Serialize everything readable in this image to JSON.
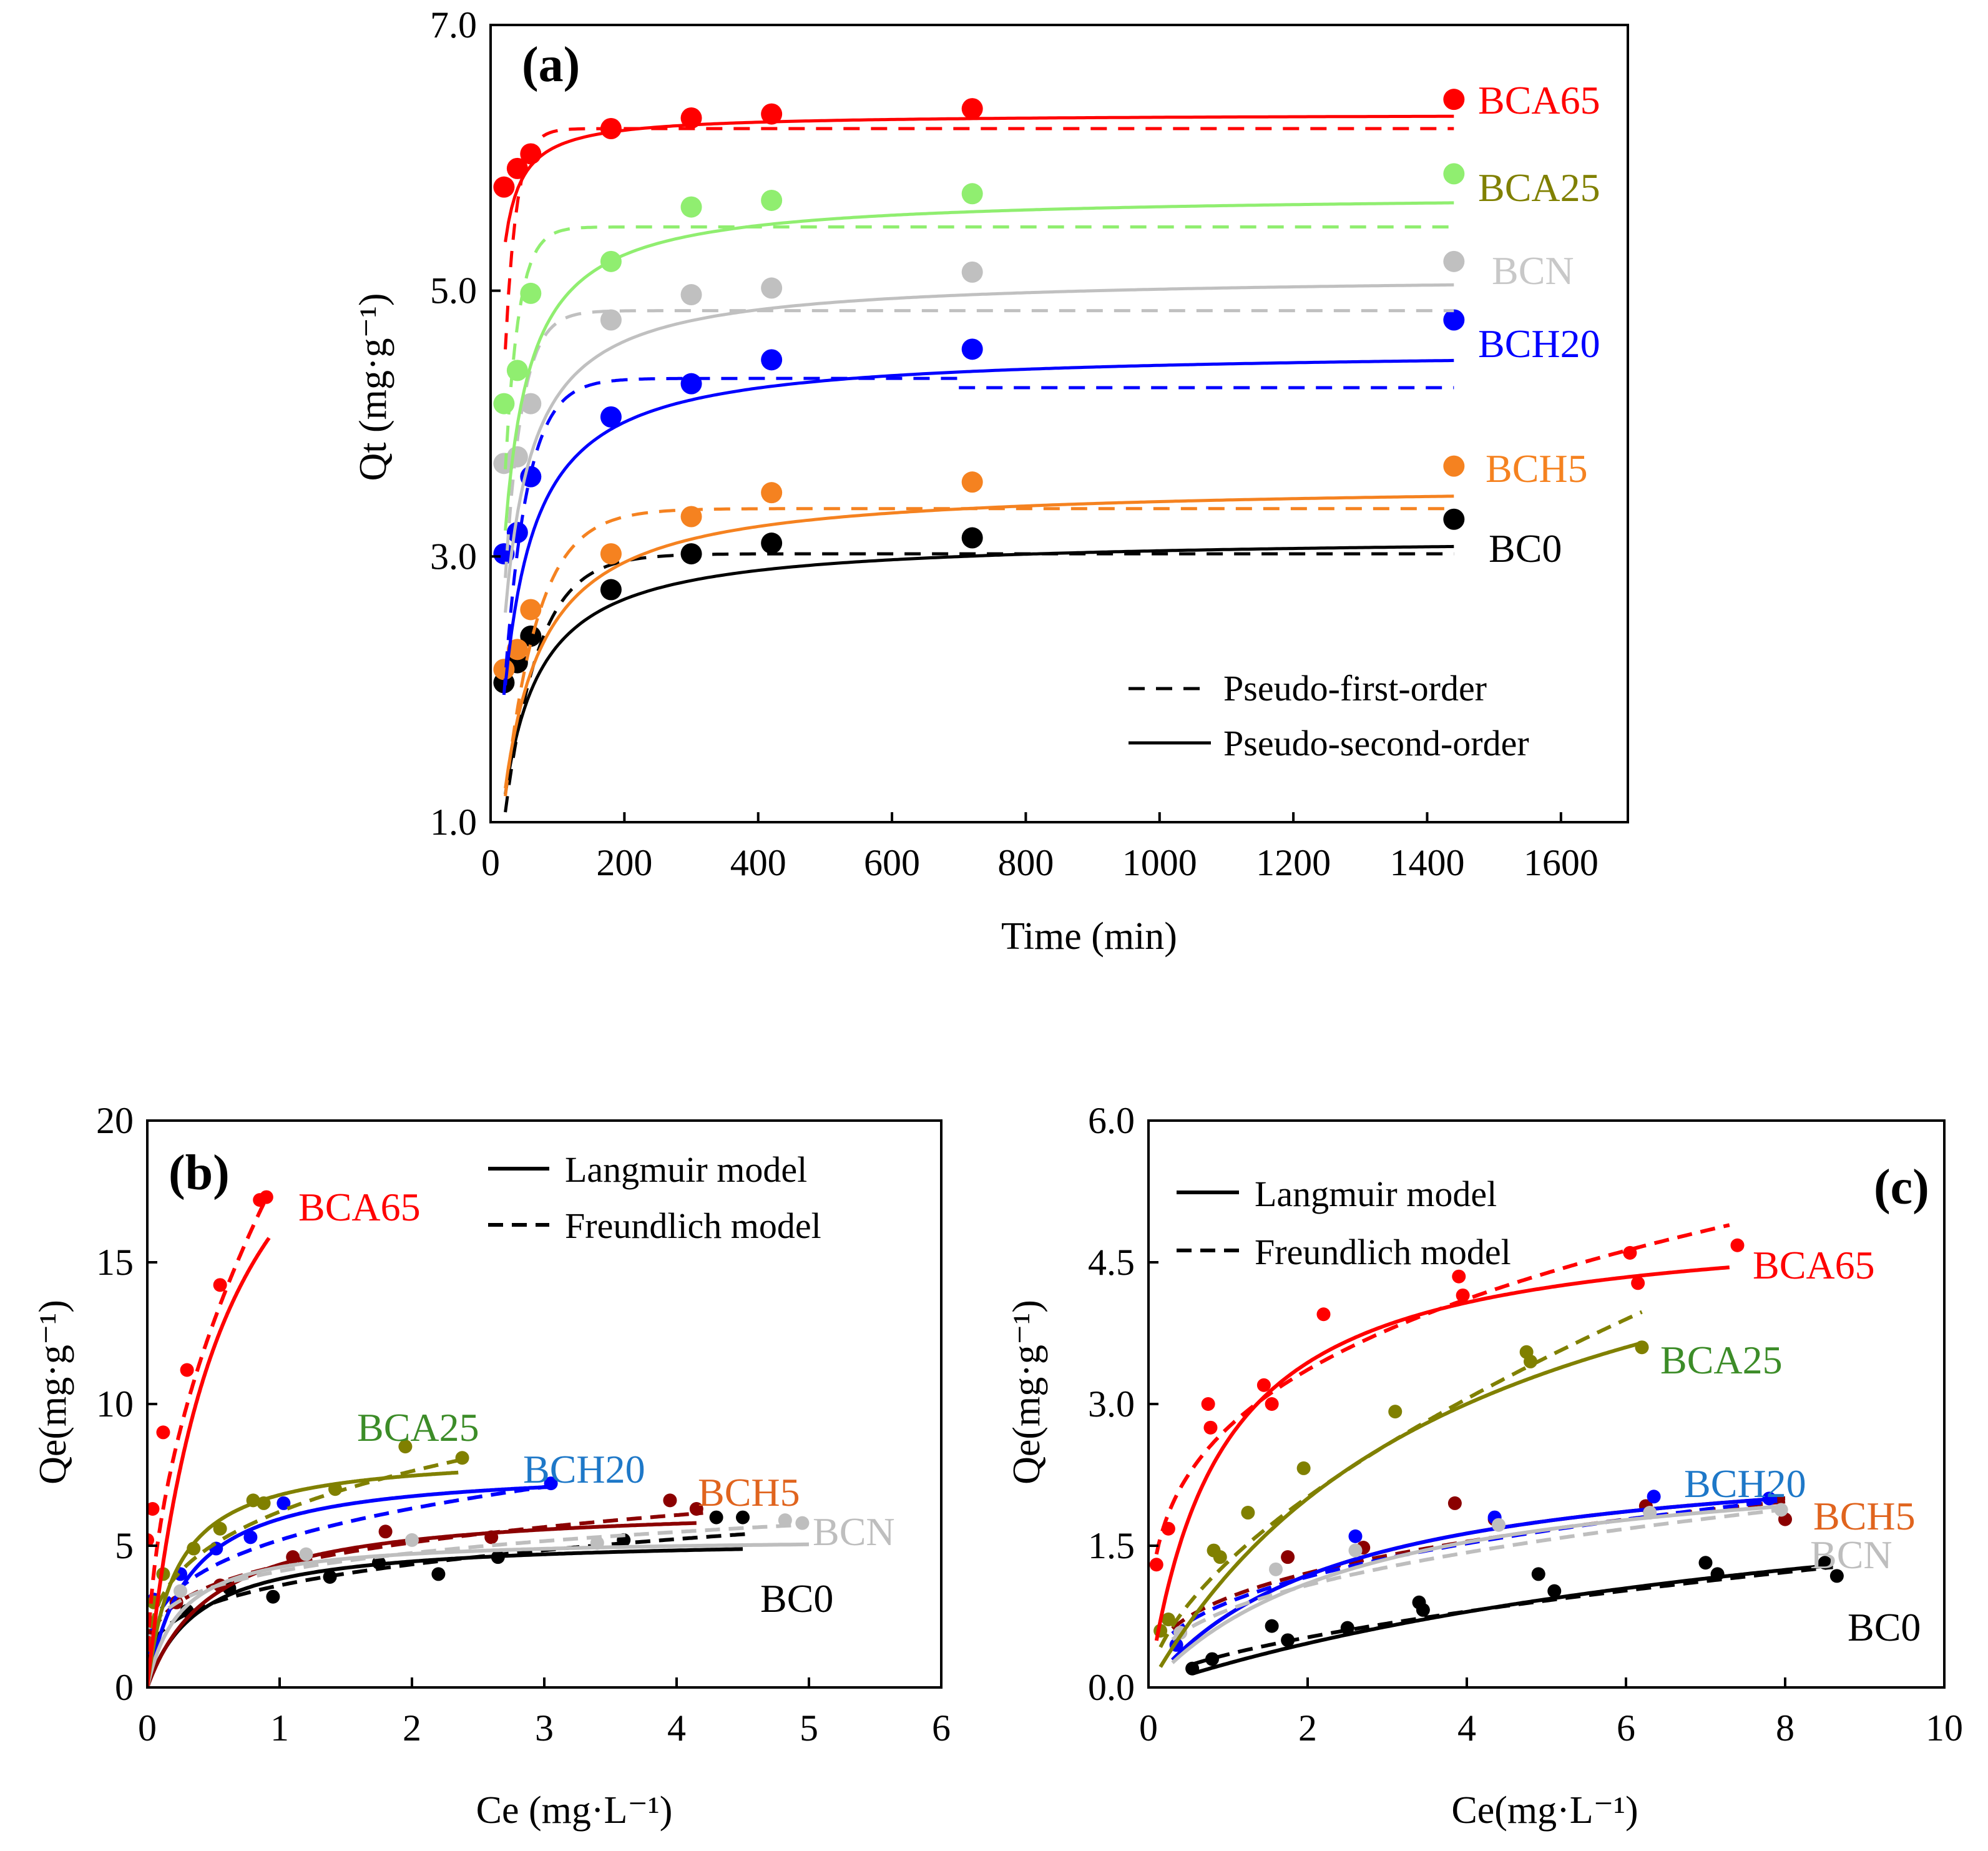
{
  "figure": {
    "colors": {
      "BC0": "#000000",
      "BCH5": "#F58220",
      "BCH20": "#0000FF",
      "BCN": "#C0C0C0",
      "BCA25": "#90EE70",
      "BCA65": "#FF0000",
      "BCA25_iso": "#808000",
      "BCH5_iso": "#8B0000",
      "BCH20_iso": "#0000FF",
      "BCN_iso": "#BEBEBE"
    }
  },
  "chart_data": [
    {
      "id": "a",
      "panel_label": "(a)",
      "type": "scatter",
      "xlabel": "Time (min)",
      "ylabel": "Qt (mg·g⁻¹)",
      "xlim": [
        0,
        1700
      ],
      "ylim": [
        1.0,
        7.0
      ],
      "xticks": [
        0,
        200,
        400,
        600,
        800,
        1000,
        1200,
        1400,
        1600
      ],
      "yticks": [
        "1.0",
        "3.0",
        "5.0",
        "7.0"
      ],
      "ytick_values": [
        1.0,
        3.0,
        5.0,
        7.0
      ],
      "legend": {
        "placement": "bottom-right",
        "entries": [
          {
            "style": "dashed",
            "label": "Pseudo-first-order"
          },
          {
            "style": "solid",
            "label": "Pseudo-second-order"
          }
        ]
      },
      "series": [
        {
          "name": "BC0",
          "color_key": "BC0",
          "x": [
            20,
            40,
            60,
            180,
            300,
            420,
            720,
            1440
          ],
          "y": [
            2.05,
            2.2,
            2.4,
            2.75,
            3.02,
            3.1,
            3.14,
            3.28
          ],
          "pfo": {
            "qe": 3.02,
            "k": 0.02
          },
          "pso": {
            "qe": 3.15,
            "k": 0.009
          }
        },
        {
          "name": "BCH5",
          "color_key": "BCH5",
          "x": [
            20,
            40,
            60,
            180,
            300,
            420,
            720,
            1440
          ],
          "y": [
            2.15,
            2.3,
            2.6,
            3.02,
            3.3,
            3.48,
            3.56,
            3.68
          ],
          "pfo": {
            "qe": 3.36,
            "k": 0.02
          },
          "pso": {
            "qe": 3.55,
            "k": 0.007
          }
        },
        {
          "name": "BCH20",
          "color_key": "BCH20",
          "x": [
            20,
            40,
            60,
            180,
            300,
            420,
            720,
            1440
          ],
          "y": [
            3.02,
            3.18,
            3.6,
            4.05,
            4.3,
            4.48,
            4.56,
            4.78
          ],
          "pfo_segments": [
            {
              "qe": 4.34,
              "k": 0.03,
              "x": [
                20,
                700
              ]
            },
            {
              "qe": 4.27,
              "k": 0.03,
              "x": [
                700,
                1440
              ]
            }
          ],
          "pso": {
            "qe": 4.56,
            "k": 0.008
          }
        },
        {
          "name": "BCN",
          "color_key": "BCN",
          "x": [
            20,
            40,
            60,
            180,
            300,
            420,
            720,
            1440
          ],
          "y": [
            3.7,
            3.75,
            4.15,
            4.78,
            4.97,
            5.02,
            5.14,
            5.22
          ],
          "pfo": {
            "qe": 4.85,
            "k": 0.04
          },
          "pso": {
            "qe": 5.12,
            "k": 0.009
          }
        },
        {
          "name": "BCA25",
          "color_key": "BCA25",
          "x": [
            20,
            40,
            60,
            180,
            300,
            420,
            720,
            1440
          ],
          "y": [
            4.15,
            4.4,
            4.98,
            5.22,
            5.63,
            5.68,
            5.73,
            5.88
          ],
          "pfo": {
            "qe": 5.48,
            "k": 0.05
          },
          "pso": {
            "qe": 5.73,
            "k": 0.01
          }
        },
        {
          "name": "BCA65",
          "color_key": "BCA65",
          "x": [
            20,
            40,
            60,
            180,
            300,
            420,
            720,
            1440
          ],
          "y": [
            5.78,
            5.92,
            6.03,
            6.22,
            6.3,
            6.33,
            6.37,
            6.44
          ],
          "pfo": {
            "qe": 6.22,
            "k": 0.06
          },
          "pso": {
            "qe": 6.33,
            "k": 0.04
          }
        }
      ]
    },
    {
      "id": "b",
      "panel_label": "(b)",
      "type": "scatter",
      "xlabel": "Ce (mg·L⁻¹)",
      "ylabel": "Qe(mg·g⁻¹)",
      "xlim": [
        0,
        6
      ],
      "ylim": [
        0,
        20
      ],
      "xticks": [
        0,
        1,
        2,
        3,
        4,
        5,
        6
      ],
      "yticks": [
        0,
        5,
        10,
        15,
        20
      ],
      "legend": {
        "placement": "top-right",
        "entries": [
          {
            "style": "solid",
            "label": "Langmuir model"
          },
          {
            "style": "dashed",
            "label": "Freundlich model"
          }
        ]
      },
      "series": [
        {
          "name": "BC0",
          "color_key": "BC0",
          "x": [
            0.02,
            0.3,
            0.62,
            0.95,
            1.38,
            1.75,
            2.2,
            2.65,
            3.6,
            4.3,
            4.5
          ],
          "y": [
            1.9,
            2.7,
            3.5,
            3.2,
            3.9,
            4.4,
            4.0,
            4.6,
            5.2,
            6.0,
            6.0
          ],
          "lang": {
            "qm": 5.3,
            "k": 2.6,
            "xmax": 4.5
          },
          "freu": {
            "kf": 3.6,
            "n": 0.27,
            "xmax": 4.55
          }
        },
        {
          "name": "BCH5",
          "color_key": "BCH5_iso",
          "x": [
            0.02,
            0.22,
            0.55,
            1.1,
            1.8,
            2.6,
            3.95,
            4.15
          ],
          "y": [
            2.1,
            3.0,
            3.6,
            4.6,
            5.5,
            5.3,
            6.6,
            6.3
          ],
          "lang": {
            "qm": 6.5,
            "k": 2.0,
            "xmax": 4.15
          },
          "freu": {
            "kf": 4.3,
            "n": 0.25,
            "xmax": 4.2
          }
        },
        {
          "name": "BCH20",
          "color_key": "BCH20_iso",
          "x": [
            0.05,
            0.25,
            0.52,
            0.78,
            1.03,
            3.05
          ],
          "y": [
            3.1,
            4.0,
            4.9,
            5.3,
            6.5,
            7.2
          ],
          "lang": {
            "qm": 7.8,
            "k": 3.2,
            "xmax": 3.05
          },
          "freu": {
            "kf": 5.2,
            "n": 0.28,
            "xmax": 3.05
          }
        },
        {
          "name": "BCN",
          "color_key": "BCN_iso",
          "x": [
            0.01,
            0.25,
            1.2,
            2.0,
            3.4,
            4.82,
            4.95
          ],
          "y": [
            2.3,
            3.4,
            4.7,
            5.2,
            5.1,
            5.9,
            5.8
          ],
          "lang": {
            "qm": 5.3,
            "k": 4.0,
            "xmax": 5.0
          },
          "freu": {
            "kf": 4.1,
            "n": 0.21,
            "xmax": 4.95
          }
        },
        {
          "name": "BCA25",
          "color_key": "BCA25_iso",
          "x": [
            0.05,
            0.12,
            0.35,
            0.55,
            0.8,
            0.88,
            1.42,
            1.95,
            2.38
          ],
          "y": [
            3.0,
            4.0,
            4.9,
            5.6,
            6.6,
            6.5,
            7.0,
            8.5,
            8.1
          ],
          "lang": {
            "qm": 8.3,
            "k": 4.5,
            "xmax": 2.35
          },
          "freu": {
            "kf": 6.2,
            "n": 0.3,
            "xmax": 2.4
          }
        },
        {
          "name": "BCA65",
          "color_key": "BCA65",
          "x": [
            0.0,
            0.04,
            0.12,
            0.3,
            0.55,
            0.85,
            0.9
          ],
          "y": [
            5.2,
            6.3,
            9.0,
            11.2,
            14.2,
            17.2,
            17.3
          ],
          "lang": {
            "qm": 26.0,
            "k": 1.7,
            "xmax": 0.92
          },
          "freu": {
            "kf": 18.2,
            "n": 0.5,
            "xmax": 0.92
          }
        }
      ]
    },
    {
      "id": "c",
      "panel_label": "(c)",
      "type": "scatter",
      "xlabel": "Ce(mg·L⁻¹)",
      "ylabel": "Qe(mg·g⁻¹)",
      "xlim": [
        0,
        10
      ],
      "ylim": [
        0.0,
        6.0
      ],
      "xticks": [
        0,
        2,
        4,
        6,
        8,
        10
      ],
      "yticks": [
        "0.0",
        "1.5",
        "3.0",
        "4.5",
        "6.0"
      ],
      "ytick_values": [
        0.0,
        1.5,
        3.0,
        4.5,
        6.0
      ],
      "legend": {
        "placement": "top-left",
        "entries": [
          {
            "style": "solid",
            "label": "Langmuir model"
          },
          {
            "style": "dashed",
            "label": "Freundlich model"
          }
        ]
      },
      "series": [
        {
          "name": "BC0",
          "color_key": "BC0",
          "x": [
            0.55,
            0.8,
            1.55,
            1.75,
            2.5,
            3.4,
            3.45,
            4.9,
            5.1,
            7.0,
            7.15,
            8.5,
            8.65
          ],
          "y": [
            0.2,
            0.3,
            0.65,
            0.5,
            0.63,
            0.9,
            0.82,
            1.2,
            1.02,
            1.32,
            1.2,
            1.32,
            1.18
          ],
          "lang": {
            "qm": 2.8,
            "k": 0.1,
            "xmin": 0.55,
            "xmax": 8.6
          },
          "freu": {
            "kf": 0.35,
            "n": 0.6,
            "xmin": 0.55,
            "xmax": 8.6
          }
        },
        {
          "name": "BCH5",
          "color_key": "BCH5_iso",
          "x": [
            0.4,
            1.75,
            2.7,
            3.85,
            4.35,
            6.25,
            8.0
          ],
          "y": [
            0.58,
            1.38,
            1.48,
            1.95,
            1.78,
            1.92,
            1.78
          ],
          "lang": {
            "qm": 2.6,
            "k": 0.42,
            "xmin": 0.3,
            "xmax": 8.0
          },
          "freu": {
            "kf": 0.95,
            "n": 0.35,
            "xmin": 0.3,
            "xmax": 8.0
          }
        },
        {
          "name": "BCH20",
          "color_key": "BCH20_iso",
          "x": [
            0.35,
            2.6,
            4.35,
            6.35,
            7.8
          ],
          "y": [
            0.45,
            1.6,
            1.8,
            2.02,
            2.0
          ],
          "lang": {
            "qm": 2.6,
            "k": 0.42,
            "xmin": 0.3,
            "xmax": 7.9
          },
          "freu": {
            "kf": 0.9,
            "n": 0.38,
            "xmin": 0.3,
            "xmax": 7.9
          }
        },
        {
          "name": "BCN",
          "color_key": "BCN_iso",
          "x": [
            0.4,
            1.6,
            2.6,
            4.4,
            6.3,
            7.95
          ],
          "y": [
            0.58,
            1.25,
            1.45,
            1.72,
            1.85,
            1.88
          ],
          "lang": {
            "qm": 2.55,
            "k": 0.38,
            "xmin": 0.3,
            "xmax": 8.0
          },
          "freu": {
            "kf": 0.82,
            "n": 0.4,
            "xmin": 0.3,
            "xmax": 8.0
          }
        },
        {
          "name": "BCA25",
          "color_key": "BCA25_iso",
          "x": [
            0.15,
            0.25,
            0.82,
            0.9,
            1.25,
            1.95,
            3.1,
            4.75,
            4.8,
            6.2
          ],
          "y": [
            0.6,
            0.72,
            1.45,
            1.38,
            1.85,
            2.32,
            2.92,
            3.55,
            3.45,
            3.6
          ],
          "lang": {
            "qm": 6.0,
            "k": 0.25,
            "xmin": 0.15,
            "xmax": 6.2
          },
          "freu": {
            "kf": 1.33,
            "n": 0.6,
            "xmin": 0.15,
            "xmax": 6.2
          }
        },
        {
          "name": "BCA65",
          "color_key": "BCA65",
          "x": [
            0.1,
            0.25,
            0.75,
            0.78,
            1.45,
            1.55,
            2.2,
            3.9,
            3.95,
            6.05,
            6.15,
            7.4
          ],
          "y": [
            1.3,
            1.68,
            3.0,
            2.75,
            3.2,
            3.0,
            3.95,
            4.35,
            4.15,
            4.6,
            4.28,
            4.68
          ],
          "lang": {
            "qm": 5.0,
            "k": 1.1,
            "xmin": 0.1,
            "xmax": 7.3
          },
          "freu": {
            "kf": 2.75,
            "n": 0.29,
            "xmin": 0.1,
            "xmax": 7.3
          }
        }
      ]
    }
  ]
}
